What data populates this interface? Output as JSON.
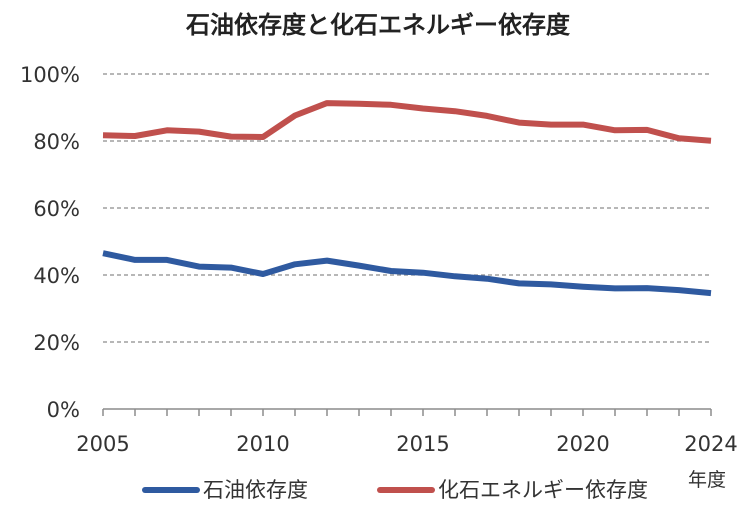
{
  "chart_data": {
    "type": "line",
    "title": "石油依存度と化石エネルギー依存度",
    "x_unit_label": "年度",
    "x": [
      2005,
      2006,
      2007,
      2008,
      2009,
      2010,
      2011,
      2012,
      2013,
      2014,
      2015,
      2016,
      2017,
      2018,
      2019,
      2020,
      2021,
      2022,
      2023,
      2024
    ],
    "x_tick_labels": [
      "2005",
      "2010",
      "2015",
      "2020",
      "2024"
    ],
    "y_tick_labels": [
      "0%",
      "20%",
      "40%",
      "60%",
      "80%",
      "100%"
    ],
    "ylim": [
      0,
      100
    ],
    "grid": true,
    "legend_position": "bottom",
    "series": [
      {
        "name": "石油依存度",
        "color": "#2f5aa0",
        "values": [
          46.5,
          44.5,
          44.5,
          42.5,
          42.2,
          40.3,
          43.2,
          44.3,
          42.8,
          41.2,
          40.7,
          39.6,
          38.9,
          37.5,
          37.2,
          36.5,
          36.0,
          36.1,
          35.5,
          34.6
        ]
      },
      {
        "name": "化石エネルギー依存度",
        "color": "#c0504d",
        "values": [
          81.7,
          81.5,
          83.2,
          82.8,
          81.3,
          81.2,
          87.6,
          91.3,
          91.1,
          90.8,
          89.7,
          88.9,
          87.5,
          85.5,
          84.9,
          84.9,
          83.2,
          83.3,
          80.8,
          80.1
        ]
      }
    ]
  }
}
